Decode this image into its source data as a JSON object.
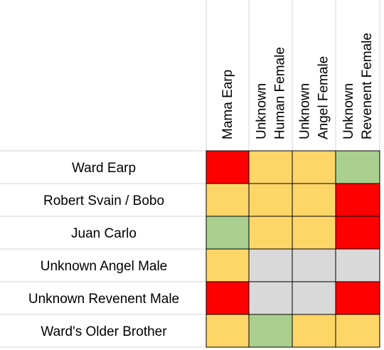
{
  "colors": {
    "red": "#ff0000",
    "yellow": "#fed667",
    "green": "#a9d08e",
    "gray": "#d9d9d9",
    "gridline": "#d4d4d4",
    "border": "#000000"
  },
  "columns": [
    {
      "lines": [
        "Mama Earp"
      ]
    },
    {
      "lines": [
        "Unknown",
        "Human Female"
      ]
    },
    {
      "lines": [
        "Unknown",
        "Angel Female"
      ]
    },
    {
      "lines": [
        "Unknown",
        "Revenent Female"
      ]
    }
  ],
  "rows": [
    {
      "label": "Ward Earp",
      "cells": [
        "red",
        "yellow",
        "yellow",
        "green"
      ]
    },
    {
      "label": "Robert Svain / Bobo",
      "cells": [
        "yellow",
        "yellow",
        "yellow",
        "red"
      ]
    },
    {
      "label": "Juan Carlo",
      "cells": [
        "green",
        "yellow",
        "yellow",
        "red"
      ]
    },
    {
      "label": "Unknown Angel Male",
      "cells": [
        "yellow",
        "gray",
        "gray",
        "gray"
      ]
    },
    {
      "label": "Unknown Revenent Male",
      "cells": [
        "red",
        "gray",
        "gray",
        "red"
      ]
    },
    {
      "label": "Ward's Older Brother",
      "cells": [
        "yellow",
        "green",
        "yellow",
        "yellow"
      ]
    }
  ]
}
